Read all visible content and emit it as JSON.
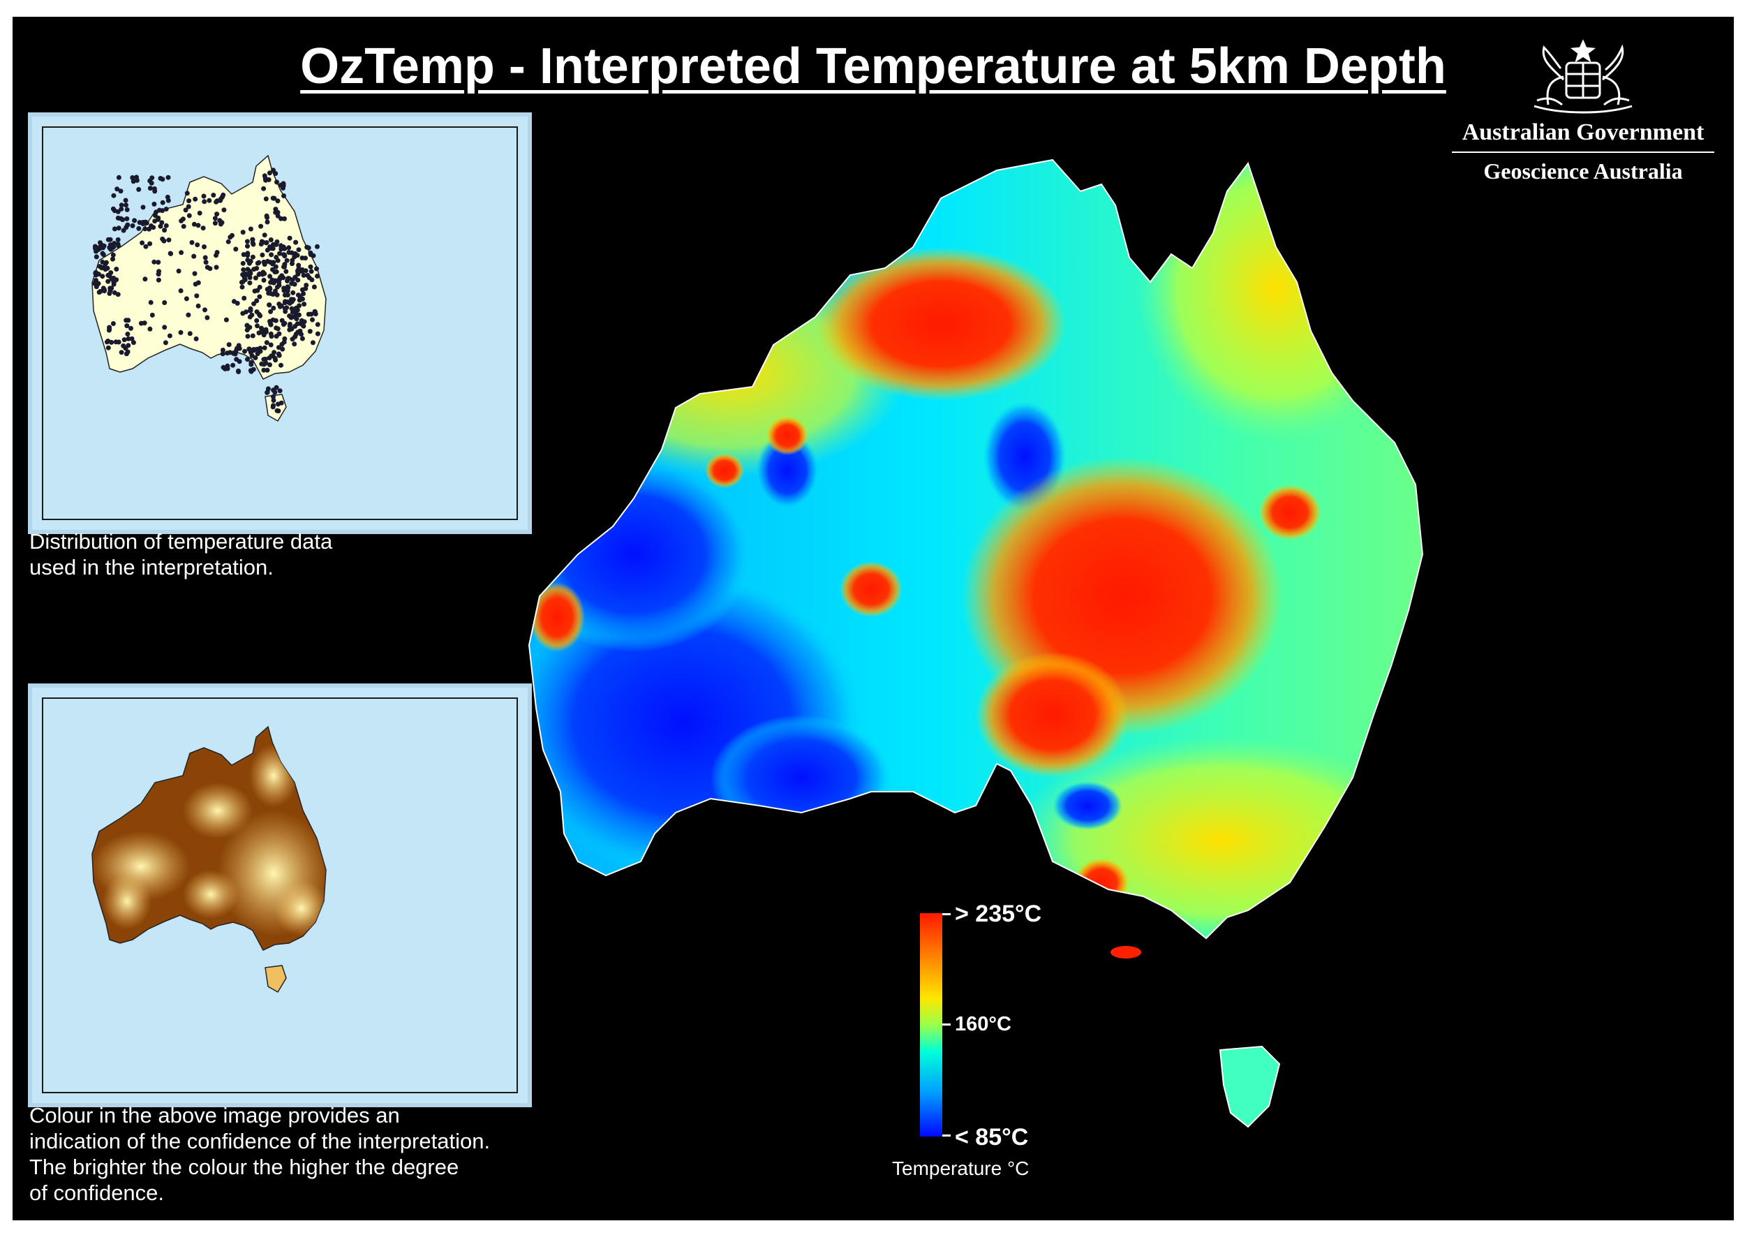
{
  "title": "OzTemp - Interpreted Temperature at 5km Depth",
  "branding": {
    "government": "Australian Government",
    "agency": "Geoscience Australia",
    "crest_icon": "commonwealth-coat-of-arms-icon"
  },
  "inset_distribution": {
    "caption_line1": "Distribution of temperature data",
    "caption_line2": "used in the interpretation.",
    "land_color": "#ffffd6",
    "point_color": "#1a1a2e",
    "sea_color": "#c5e6f7"
  },
  "inset_confidence": {
    "caption_line1": "Colour in the above image provides an",
    "caption_line2": "indication of the confidence of the interpretation.",
    "caption_line3": "The brighter the colour the higher the degree",
    "caption_line4": "of confidence.",
    "low_color": "#7a3300",
    "high_color": "#fff2a0"
  },
  "legend": {
    "max_label": "> 235°C",
    "mid_label": "160°C",
    "min_label": "< 85°C",
    "title": "Temperature °C",
    "min_value": 85,
    "mid_value": 160,
    "max_value": 235
  },
  "colors": {
    "background": "#000000",
    "hot": "#ff1a00",
    "warm": "#ffe600",
    "mid": "#00ffd8",
    "cold": "#0008ff"
  }
}
